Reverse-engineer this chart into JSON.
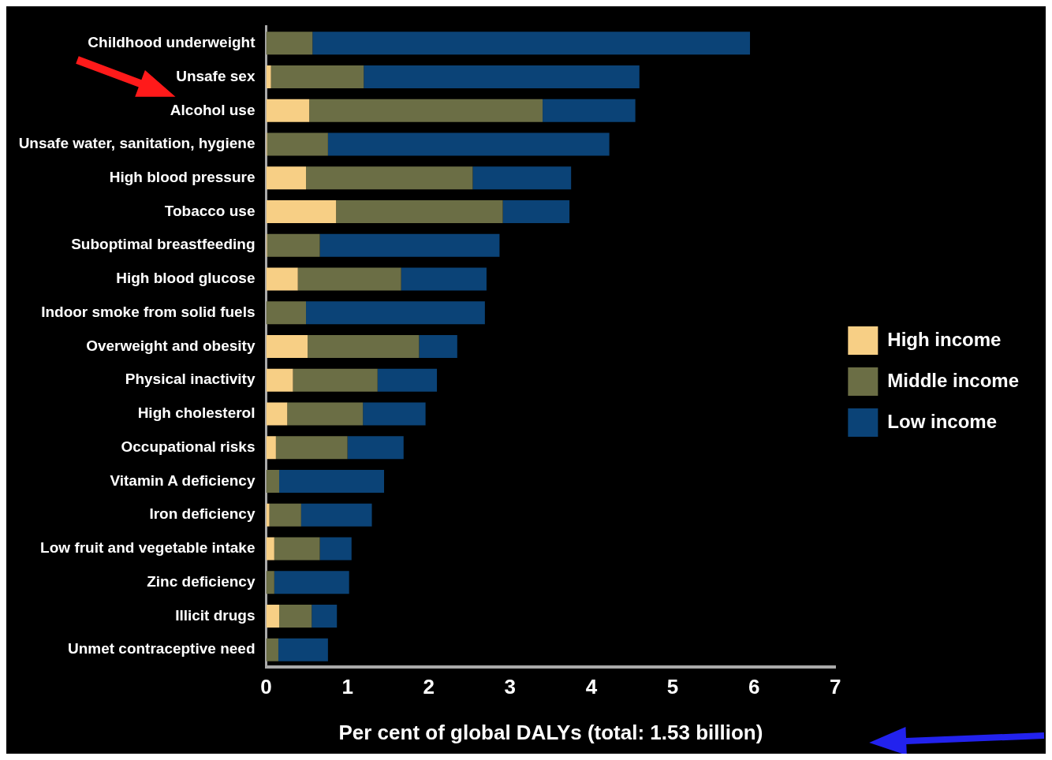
{
  "chart_data": {
    "type": "bar",
    "orientation": "horizontal",
    "stacked": true,
    "xlabel": "Per cent of global DALYs (total: 1.53 billion)",
    "categories": [
      "Childhood underweight",
      "Unsafe sex",
      "Alcohol use",
      "Unsafe water, sanitation, hygiene",
      "High blood pressure",
      "Tobacco use",
      "Suboptimal breastfeeding",
      "High blood glucose",
      "Indoor smoke from solid fuels",
      "Overweight and obesity",
      "Physical inactivity",
      "High cholesterol",
      "Occupational risks",
      "Vitamin A deficiency",
      "Iron deficiency",
      "Low fruit and vegetable intake",
      "Zinc deficiency",
      "Illicit drugs",
      "Unmet contraceptive need"
    ],
    "series": [
      {
        "name": "High income",
        "color": "#f7cf85",
        "values": [
          0,
          0.06,
          0.53,
          0.01,
          0.49,
          0.86,
          0.01,
          0.39,
          0,
          0.51,
          0.33,
          0.26,
          0.12,
          0,
          0.04,
          0.1,
          0,
          0.16,
          0
        ]
      },
      {
        "name": "Middle income",
        "color": "#6b6e45",
        "values": [
          0.57,
          1.14,
          2.87,
          0.75,
          2.05,
          2.05,
          0.65,
          1.27,
          0.49,
          1.37,
          1.04,
          0.93,
          0.88,
          0.16,
          0.39,
          0.56,
          0.1,
          0.4,
          0.15
        ]
      },
      {
        "name": "Low income",
        "color": "#0b4377",
        "values": [
          5.38,
          3.39,
          1.14,
          3.46,
          1.21,
          0.82,
          2.21,
          1.05,
          2.2,
          0.47,
          0.73,
          0.77,
          0.69,
          1.29,
          0.87,
          0.39,
          0.92,
          0.31,
          0.61
        ]
      }
    ],
    "xlim": [
      0,
      7
    ],
    "xticks": [
      0,
      1,
      2,
      3,
      4,
      5,
      6,
      7
    ],
    "grid": false,
    "legend": "right"
  }
}
